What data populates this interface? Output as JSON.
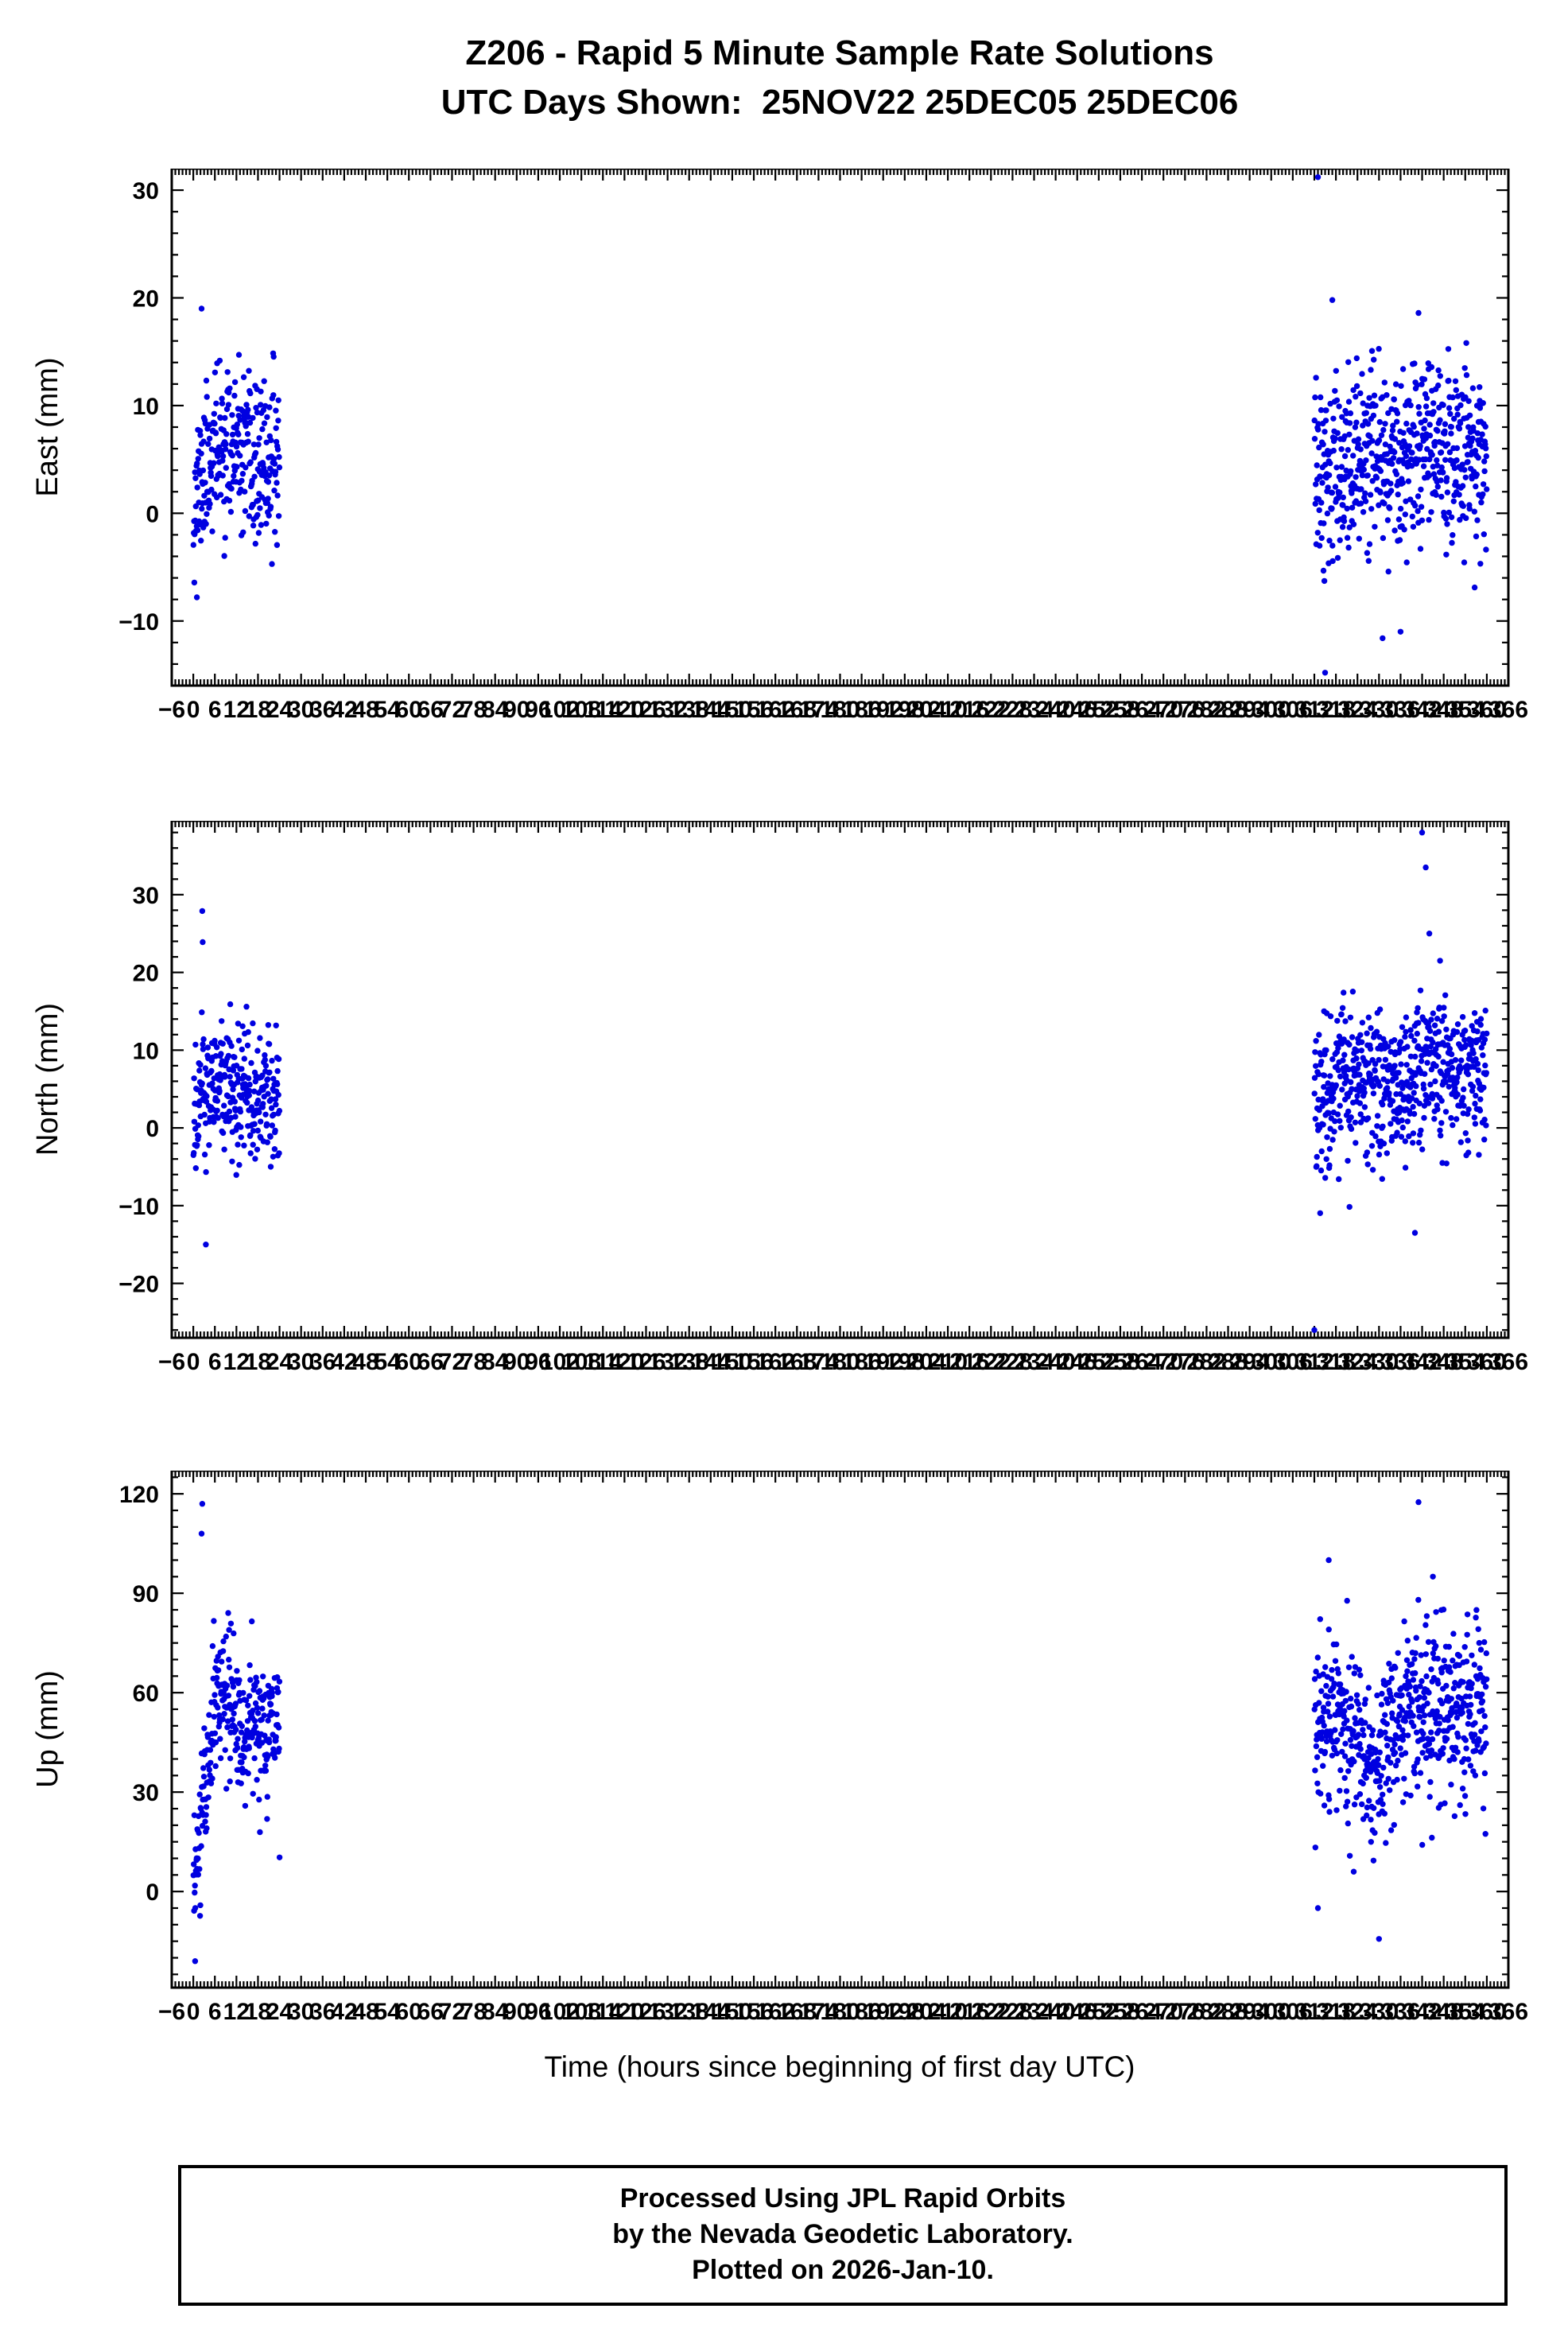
{
  "header": {
    "title": "Z206 - Rapid 5 Minute Sample Rate Solutions",
    "subtitle": "UTC Days Shown:  25NOV22 25DEC05 25DEC06"
  },
  "xlabel": "Time (hours since beginning of first day UTC)",
  "footer": {
    "line1": "Processed Using JPL Rapid Orbits",
    "line2": "by the Nevada Geodetic Laboratory.",
    "line3": "Plotted on 2026-Jan-10."
  },
  "colors": {
    "point": "#0000e0",
    "axis": "#000000"
  },
  "chart_data": [
    {
      "type": "scatter",
      "ylabel": "East (mm)",
      "ylim": [
        -16,
        32
      ],
      "ytick_major": 10,
      "ytick_minor": 2,
      "xlim": [
        -6,
        366
      ],
      "xtick_major": 6,
      "xtick_minor": 1,
      "legend": "none",
      "grid": false,
      "clusters": [
        {
          "seed": 11,
          "count": 288,
          "x_range": [
            0,
            24
          ],
          "sd": 3.5,
          "y_clamp": [
            -8.5,
            17
          ],
          "mean_points": [
            [
              0,
              1
            ],
            [
              3,
              4
            ],
            [
              6,
              6
            ],
            [
              10,
              6
            ],
            [
              14,
              5
            ],
            [
              18,
              4
            ],
            [
              24,
              5
            ]
          ]
        },
        {
          "seed": 12,
          "count": 576,
          "x_range": [
            312,
            360
          ],
          "sd": 4,
          "y_clamp": [
            -9,
            16
          ],
          "mean_points": [
            [
              312,
              3
            ],
            [
              318,
              4
            ],
            [
              324,
              5
            ],
            [
              330,
              6
            ],
            [
              336,
              5
            ],
            [
              342,
              6
            ],
            [
              348,
              6
            ],
            [
              354,
              6
            ],
            [
              360,
              5
            ]
          ]
        }
      ],
      "outlier_points": [
        [
          2.3,
          19.0
        ],
        [
          1.0,
          -7.8
        ],
        [
          313,
          31.2
        ],
        [
          317,
          19.8
        ],
        [
          341,
          18.6
        ],
        [
          315,
          -14.8
        ],
        [
          331,
          -11.6
        ],
        [
          336,
          -11.0
        ]
      ]
    },
    {
      "type": "scatter",
      "ylabel": "North (mm)",
      "ylim": [
        -27,
        39.5
      ],
      "ytick_major": 10,
      "ytick_minor": 2,
      "xlim": [
        -6,
        366
      ],
      "xtick_major": 6,
      "xtick_minor": 1,
      "legend": "none",
      "grid": false,
      "clusters": [
        {
          "seed": 21,
          "count": 288,
          "x_range": [
            0,
            24
          ],
          "sd": 4.5,
          "y_clamp": [
            -12,
            16
          ],
          "mean_points": [
            [
              0,
              2
            ],
            [
              2,
              3
            ],
            [
              4,
              5
            ],
            [
              8,
              6
            ],
            [
              12,
              5
            ],
            [
              16,
              4
            ],
            [
              24,
              5
            ]
          ]
        },
        {
          "seed": 22,
          "count": 576,
          "x_range": [
            312,
            360
          ],
          "sd": 5,
          "y_clamp": [
            -14,
            18
          ],
          "mean_points": [
            [
              312,
              4
            ],
            [
              320,
              7
            ],
            [
              328,
              5
            ],
            [
              336,
              6
            ],
            [
              344,
              8
            ],
            [
              352,
              8
            ],
            [
              360,
              8
            ]
          ]
        }
      ],
      "outlier_points": [
        [
          2.5,
          27.9
        ],
        [
          2.6,
          23.9
        ],
        [
          3.5,
          -15.0
        ],
        [
          342,
          38.0
        ],
        [
          343,
          33.5
        ],
        [
          344,
          25.0
        ],
        [
          347,
          21.5
        ],
        [
          312,
          -26.0
        ],
        [
          340,
          -13.5
        ]
      ]
    },
    {
      "type": "scatter",
      "ylabel": "Up (mm)",
      "ylim": [
        -29,
        127
      ],
      "ytick_major": 30,
      "ytick_minor": 5,
      "xlim": [
        -6,
        366
      ],
      "xtick_major": 6,
      "xtick_minor": 1,
      "legend": "none",
      "grid": false,
      "clusters": [
        {
          "seed": 31,
          "count": 288,
          "x_range": [
            0,
            24
          ],
          "sd": 10,
          "y_clamp": [
            -24,
            92
          ],
          "mean_points": [
            [
              0,
              0
            ],
            [
              1,
              8
            ],
            [
              2,
              20
            ],
            [
              4,
              40
            ],
            [
              6,
              55
            ],
            [
              8,
              62
            ],
            [
              10,
              58
            ],
            [
              12,
              50
            ],
            [
              14,
              45
            ],
            [
              16,
              50
            ],
            [
              18,
              52
            ],
            [
              20,
              48
            ],
            [
              24,
              50
            ]
          ]
        },
        {
          "seed": 32,
          "count": 576,
          "x_range": [
            312,
            360
          ],
          "sd": 13,
          "y_clamp": [
            -16,
            90
          ],
          "mean_points": [
            [
              312,
              50
            ],
            [
              318,
              55
            ],
            [
              324,
              45
            ],
            [
              330,
              35
            ],
            [
              334,
              50
            ],
            [
              340,
              55
            ],
            [
              346,
              58
            ],
            [
              352,
              50
            ],
            [
              360,
              52
            ]
          ]
        }
      ],
      "outlier_points": [
        [
          2.5,
          117
        ],
        [
          2.3,
          108
        ],
        [
          24,
          10.3
        ],
        [
          0.5,
          -21
        ],
        [
          341,
          117.5
        ],
        [
          316,
          100
        ],
        [
          345,
          95
        ],
        [
          330,
          -14.3
        ],
        [
          313,
          -5
        ]
      ]
    }
  ]
}
